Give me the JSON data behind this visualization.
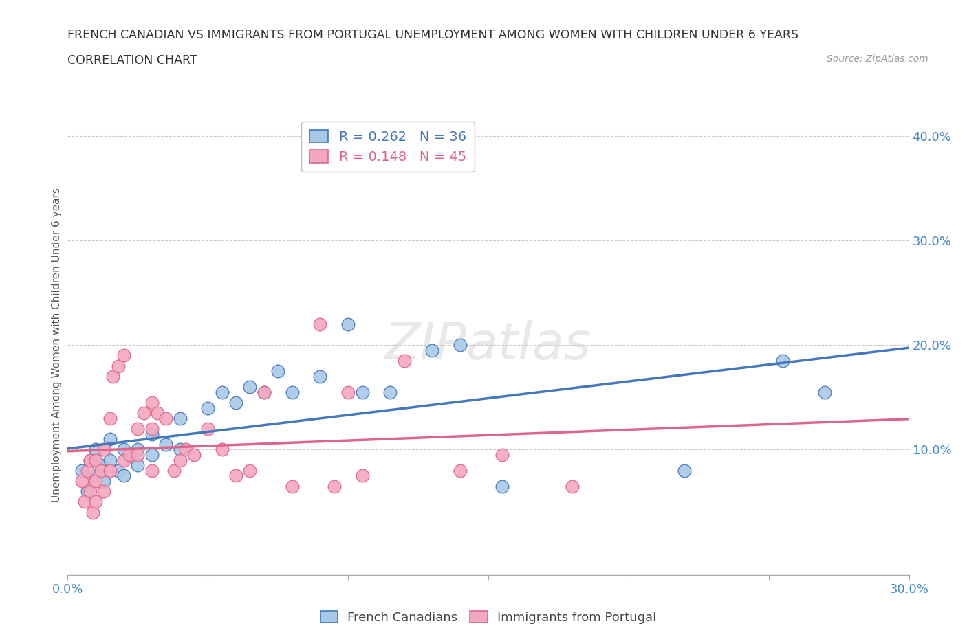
{
  "title_line1": "FRENCH CANADIAN VS IMMIGRANTS FROM PORTUGAL UNEMPLOYMENT AMONG WOMEN WITH CHILDREN UNDER 6 YEARS",
  "title_line2": "CORRELATION CHART",
  "source": "Source: ZipAtlas.com",
  "ylabel": "Unemployment Among Women with Children Under 6 years",
  "xlim": [
    0.0,
    0.3
  ],
  "ylim": [
    -0.02,
    0.42
  ],
  "xticks": [
    0.0,
    0.05,
    0.1,
    0.15,
    0.2,
    0.25,
    0.3
  ],
  "xtick_labels": [
    "0.0%",
    "",
    "",
    "",
    "",
    "",
    "30.0%"
  ],
  "ytick_labels": [
    "10.0%",
    "20.0%",
    "30.0%",
    "40.0%"
  ],
  "ytick_positions": [
    0.1,
    0.2,
    0.3,
    0.4
  ],
  "legend_r1": "R = 0.262",
  "legend_n1": "N = 36",
  "legend_r2": "R = 0.148",
  "legend_n2": "N = 45",
  "color_blue": "#A8C8E8",
  "color_pink": "#F4A8C0",
  "line_blue": "#4477BB",
  "line_pink": "#DD6688",
  "title_color": "#333333",
  "axis_label_color": "#555555",
  "tick_color": "#4488CC",
  "watermark": "ZIPatlas",
  "fc_x": [
    0.005,
    0.007,
    0.008,
    0.01,
    0.01,
    0.012,
    0.013,
    0.015,
    0.015,
    0.018,
    0.02,
    0.02,
    0.025,
    0.025,
    0.03,
    0.03,
    0.035,
    0.04,
    0.04,
    0.05,
    0.055,
    0.06,
    0.065,
    0.07,
    0.075,
    0.08,
    0.09,
    0.1,
    0.105,
    0.115,
    0.13,
    0.14,
    0.155,
    0.22,
    0.255,
    0.27
  ],
  "fc_y": [
    0.08,
    0.06,
    0.09,
    0.075,
    0.1,
    0.085,
    0.07,
    0.09,
    0.11,
    0.08,
    0.1,
    0.075,
    0.1,
    0.085,
    0.115,
    0.095,
    0.105,
    0.13,
    0.1,
    0.14,
    0.155,
    0.145,
    0.16,
    0.155,
    0.175,
    0.155,
    0.17,
    0.22,
    0.155,
    0.155,
    0.195,
    0.2,
    0.065,
    0.08,
    0.185,
    0.155
  ],
  "pt_x": [
    0.005,
    0.006,
    0.007,
    0.008,
    0.008,
    0.009,
    0.01,
    0.01,
    0.01,
    0.012,
    0.013,
    0.013,
    0.015,
    0.015,
    0.016,
    0.018,
    0.02,
    0.02,
    0.022,
    0.025,
    0.025,
    0.027,
    0.03,
    0.03,
    0.03,
    0.032,
    0.035,
    0.038,
    0.04,
    0.042,
    0.045,
    0.05,
    0.055,
    0.06,
    0.065,
    0.07,
    0.08,
    0.09,
    0.095,
    0.1,
    0.105,
    0.12,
    0.14,
    0.155,
    0.18
  ],
  "pt_y": [
    0.07,
    0.05,
    0.08,
    0.06,
    0.09,
    0.04,
    0.07,
    0.09,
    0.05,
    0.08,
    0.06,
    0.1,
    0.08,
    0.13,
    0.17,
    0.18,
    0.09,
    0.19,
    0.095,
    0.095,
    0.12,
    0.135,
    0.08,
    0.12,
    0.145,
    0.135,
    0.13,
    0.08,
    0.09,
    0.1,
    0.095,
    0.12,
    0.1,
    0.075,
    0.08,
    0.155,
    0.065,
    0.22,
    0.065,
    0.155,
    0.075,
    0.185,
    0.08,
    0.095,
    0.065
  ],
  "reg_fc": [
    0.068,
    0.155
  ],
  "reg_pt": [
    0.075,
    0.148
  ]
}
